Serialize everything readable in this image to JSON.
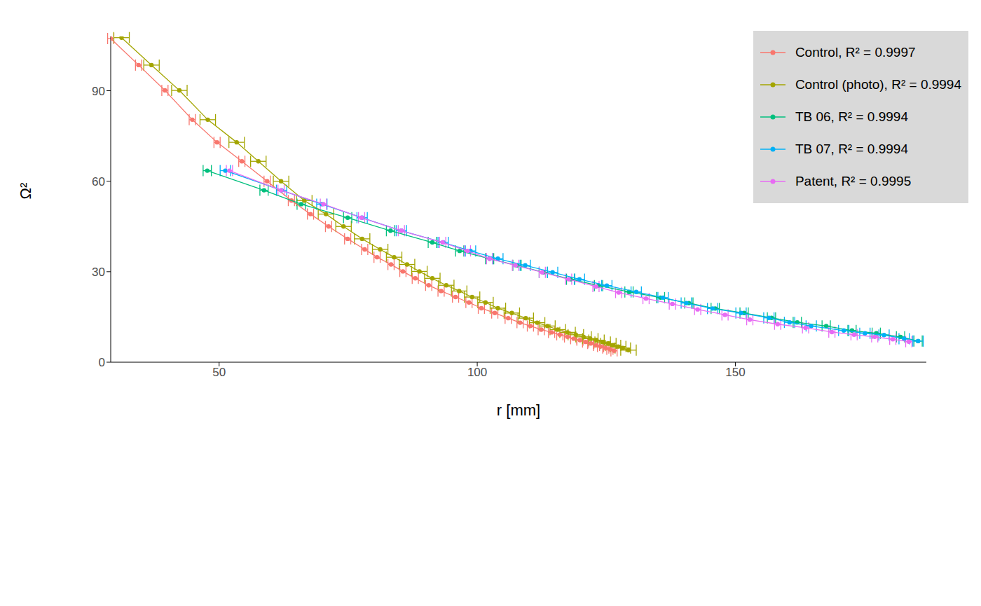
{
  "chart_data": {
    "type": "scatter",
    "x_label": "r [mm]",
    "y_label": "Ω²",
    "xlim": [
      29,
      187
    ],
    "ylim": [
      0,
      108
    ],
    "xticks": [
      50,
      100,
      150
    ],
    "yticks": [
      0,
      30,
      60,
      90
    ],
    "grid": false,
    "legend": "top-right",
    "series": [
      {
        "name": "Control, R² = 0.9997",
        "color": "#F8766D",
        "marker": "circle",
        "line_style": "solid",
        "x_error": 0.6,
        "x": [
          29,
          34.4,
          39.5,
          44.8,
          49.6,
          54.4,
          59.3,
          64,
          67.7,
          71.2,
          74.9,
          78.2,
          80.6,
          83.3,
          85.6,
          88,
          90.6,
          93,
          95.8,
          98.4,
          100.8,
          103.4,
          106,
          108.3,
          110.3,
          112.4,
          114.4,
          116,
          117.5,
          118.7,
          119.9,
          121,
          122,
          123.1,
          123.9,
          124.9,
          125.7,
          126.5
        ],
        "values": [
          107.3,
          98.5,
          90.1,
          80.4,
          72.9,
          66.6,
          60,
          53.6,
          49.1,
          45,
          40.9,
          37.4,
          34.8,
          32.4,
          30.1,
          27.8,
          25.5,
          23.6,
          21.6,
          19.8,
          17.9,
          16.3,
          14.6,
          13.1,
          12,
          10.8,
          9.9,
          9.1,
          8.4,
          7.8,
          7.3,
          6.7,
          6.2,
          5.6,
          5.2,
          4.7,
          4.3,
          3.8
        ]
      },
      {
        "name": "Control (photo), R² = 0.9994",
        "color": "#A3A500",
        "marker": "circle",
        "line_style": "solid",
        "x_error": 1.5,
        "x": [
          31.1,
          36.9,
          42.3,
          47.8,
          53.4,
          57.6,
          62,
          66.5,
          70.7,
          74.1,
          77.7,
          81.2,
          83.9,
          86.4,
          88.8,
          91.3,
          94,
          96.5,
          99,
          101.6,
          104,
          106.7,
          109.4,
          111.6,
          113.6,
          115.6,
          117.5,
          119.1,
          120.6,
          121.9,
          123.1,
          124.3,
          125.4,
          126.3,
          127.3,
          128.2,
          129.3
        ],
        "values": [
          107.6,
          98.5,
          90.1,
          80.4,
          72.9,
          66.6,
          60,
          53.6,
          49.1,
          45,
          40.9,
          37.4,
          34.8,
          32.4,
          30.1,
          27.8,
          25.5,
          23.6,
          21.6,
          19.8,
          17.9,
          16.3,
          14.6,
          13.1,
          12,
          10.8,
          9.9,
          9.1,
          8.4,
          7.8,
          7.3,
          6.7,
          6.2,
          5.6,
          5.2,
          4.7,
          4.0
        ]
      },
      {
        "name": "TB 06, R² = 0.9994",
        "color": "#00BF7D",
        "marker": "circle",
        "line_style": "solid",
        "x_error": 0.8,
        "x": [
          47.7,
          58.7,
          65.9,
          74.9,
          83.2,
          91.3,
          96.6,
          102.4,
          107.7,
          112.8,
          118.1,
          123.5,
          129.4,
          135.5,
          141,
          146.1,
          151.7,
          157,
          162,
          167.6,
          172.6,
          177.3,
          182,
          185.4
        ],
        "values": [
          63.5,
          57,
          52.4,
          47.9,
          43.6,
          39.7,
          36.9,
          34.3,
          32.1,
          29.8,
          27.5,
          25.4,
          23.3,
          21.4,
          19.6,
          17.8,
          16.3,
          14.7,
          13.2,
          12,
          10.5,
          9.6,
          8.4,
          7
        ]
      },
      {
        "name": "TB 07, R² = 0.9994",
        "color": "#00B0F6",
        "marker": "circle",
        "line_style": "solid",
        "x_error": 1.0,
        "x": [
          51.2,
          62.1,
          69.9,
          77.7,
          85.3,
          93.4,
          98.7,
          104,
          109.3,
          114.6,
          119.8,
          125.1,
          130.8,
          136,
          140.5,
          145.6,
          151.1,
          156.5,
          160.5,
          164.7,
          171,
          175.1,
          178.8,
          182.7,
          185.4
        ],
        "values": [
          63.5,
          57,
          52.4,
          47.9,
          43.6,
          39.7,
          36.9,
          34.3,
          32.1,
          29.8,
          27.5,
          25.4,
          23.3,
          21.4,
          19.6,
          17.8,
          16.3,
          14.7,
          13.2,
          12,
          10.5,
          9.6,
          9,
          7.8,
          7
        ]
      },
      {
        "name": "Patent, R² = 0.9995",
        "color": "#E76BF3",
        "marker": "circle",
        "line_style": "solid",
        "x_error": 0.6,
        "x": [
          52,
          62,
          70.2,
          77.6,
          85.3,
          93.3,
          98.1,
          102.4,
          107.4,
          112.6,
          117.7,
          123,
          127.4,
          132.7,
          137.8,
          142.7,
          148,
          152.8,
          158.2,
          163.6,
          168.7,
          173,
          177,
          180.5,
          183.6
        ],
        "values": [
          63.5,
          57,
          52.4,
          47.9,
          43.6,
          39.7,
          36.9,
          34.3,
          32.1,
          29.8,
          27.5,
          25.1,
          23.1,
          21.1,
          19.3,
          17.5,
          15.7,
          14.1,
          12.6,
          11.4,
          10,
          9.1,
          8.4,
          7.6,
          6.8
        ]
      }
    ]
  }
}
